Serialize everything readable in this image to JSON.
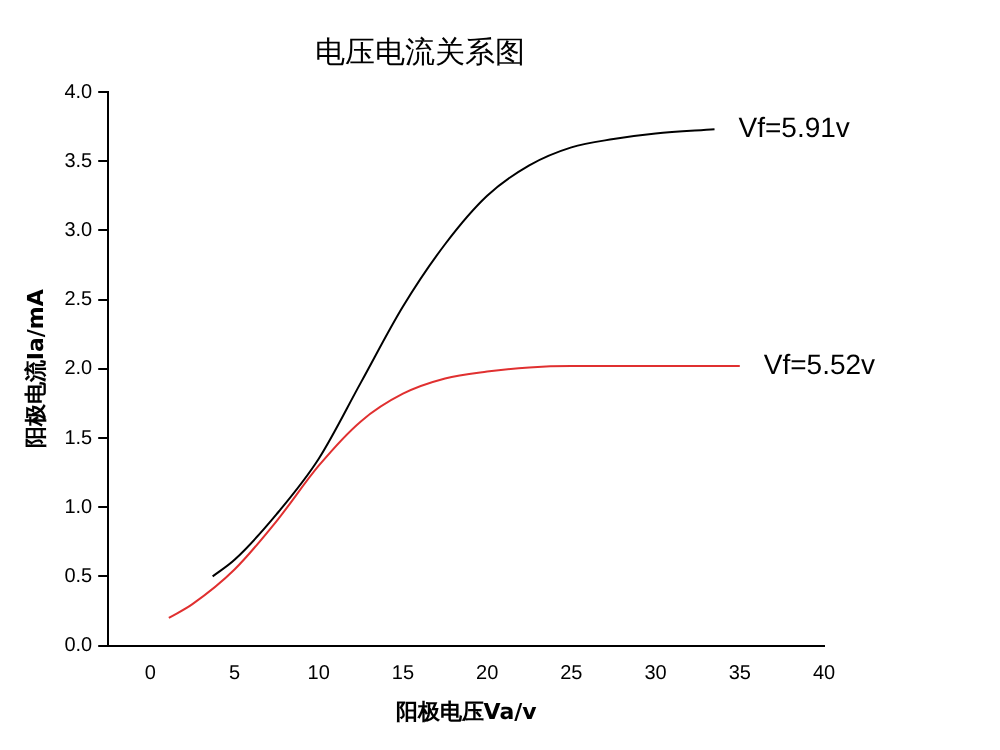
{
  "chart_data": {
    "type": "line",
    "title": "电压电流关系图",
    "xlabel": "阳极电压Va/v",
    "ylabel": "阳极电流Ia/mA",
    "xlim": [
      -2.5,
      40
    ],
    "xticks": [
      0,
      5,
      10,
      15,
      20,
      25,
      30,
      35,
      40
    ],
    "ylim": [
      0,
      4
    ],
    "yticks": [
      {
        "value": 0,
        "label": "0.0"
      },
      {
        "value": 0.5,
        "label": "0.5"
      },
      {
        "value": 1,
        "label": "1.0"
      },
      {
        "value": 1.5,
        "label": "1.5"
      },
      {
        "value": 2,
        "label": "2.0"
      },
      {
        "value": 2.5,
        "label": "2.5"
      },
      {
        "value": 3,
        "label": "3.0"
      },
      {
        "value": 3.5,
        "label": "3.5"
      },
      {
        "value": 4,
        "label": "4.0"
      }
    ],
    "grid": false,
    "legend": false,
    "marker": "none",
    "line_style": "solid",
    "series": [
      {
        "name": "Vf=5.91v",
        "color": "#000000",
        "x": [
          3.7,
          5,
          7.5,
          10,
          12.5,
          15,
          17.5,
          20,
          22.5,
          25,
          27.5,
          30,
          33.5
        ],
        "values": [
          0.5,
          0.62,
          0.95,
          1.35,
          1.9,
          2.45,
          2.9,
          3.25,
          3.47,
          3.6,
          3.66,
          3.7,
          3.73
        ]
      },
      {
        "name": "Vf=5.52v",
        "color": "#e03030",
        "x": [
          1.1,
          2.5,
          5,
          7.5,
          10,
          12.5,
          15,
          17.5,
          20,
          22.5,
          25,
          30,
          35
        ],
        "values": [
          0.2,
          0.3,
          0.55,
          0.9,
          1.3,
          1.62,
          1.82,
          1.93,
          1.98,
          2.01,
          2.02,
          2.02,
          2.02
        ]
      }
    ]
  }
}
